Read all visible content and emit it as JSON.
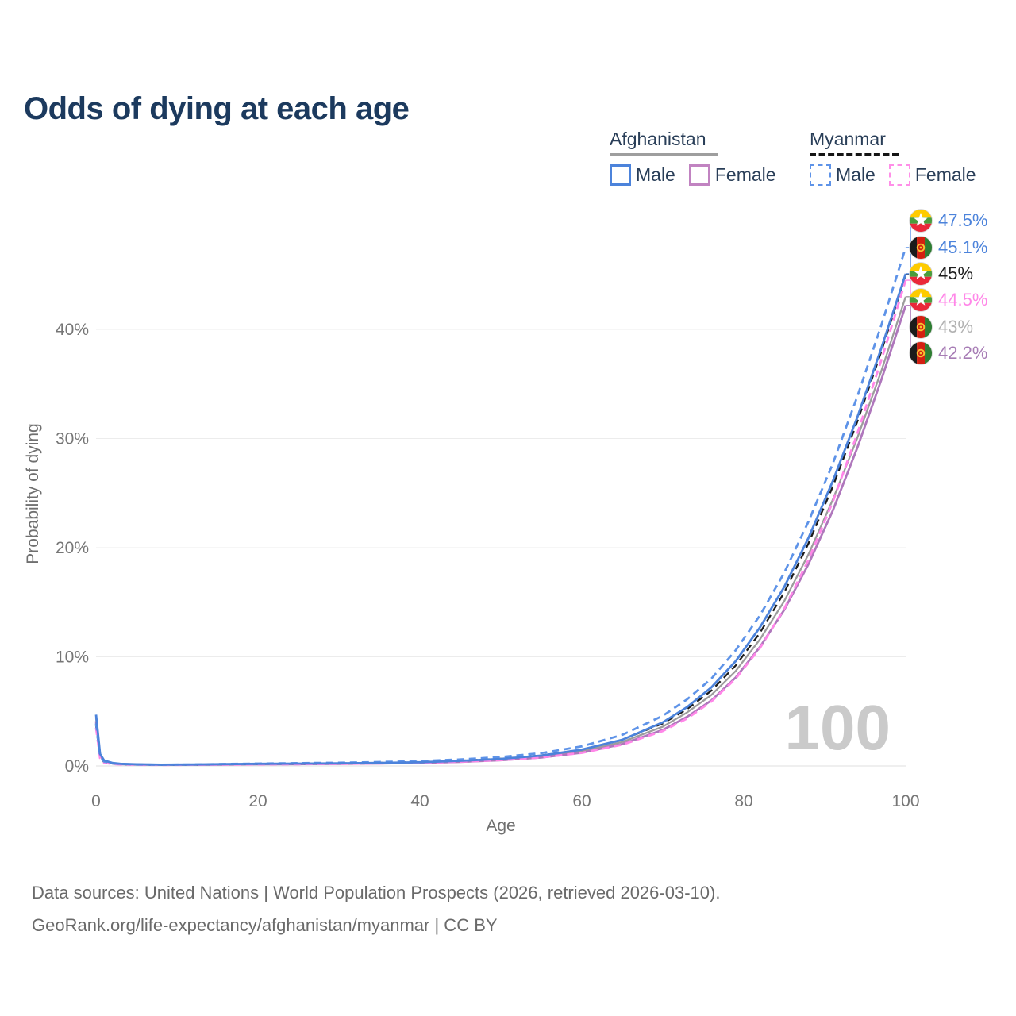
{
  "title": "Odds of dying at each age",
  "legend": {
    "groups": [
      {
        "label": "Afghanistan",
        "line_style": "solid",
        "underline_color": "#9E9E9E",
        "items": [
          {
            "label": "Male",
            "color": "#4C83DB",
            "dashed": false
          },
          {
            "label": "Female",
            "color": "#C183C1",
            "dashed": false
          }
        ]
      },
      {
        "label": "Myanmar",
        "line_style": "dashed",
        "underline_color": "#151515",
        "items": [
          {
            "label": "Male",
            "color": "#5E93E8",
            "dashed": true
          },
          {
            "label": "Female",
            "color": "#FF8FE8",
            "dashed": true
          }
        ]
      }
    ]
  },
  "chart_data": {
    "type": "line",
    "title": "Odds of dying at each age",
    "xlabel": "Age",
    "ylabel": "Probability of dying",
    "xlim": [
      0,
      100
    ],
    "ylim": [
      0,
      50
    ],
    "grid": true,
    "legend_position": "top-right",
    "x_ticks": [
      0,
      20,
      40,
      60,
      80,
      100
    ],
    "y_ticks": [
      {
        "value": 0,
        "label": "0%"
      },
      {
        "value": 10,
        "label": "10%"
      },
      {
        "value": 20,
        "label": "20%"
      },
      {
        "value": 30,
        "label": "30%"
      },
      {
        "value": 40,
        "label": "40%"
      }
    ],
    "x": [
      0,
      0.5,
      1,
      2,
      3,
      5,
      8,
      12,
      16,
      20,
      25,
      30,
      35,
      40,
      45,
      50,
      55,
      60,
      65,
      70,
      73,
      76,
      79,
      82,
      85,
      88,
      91,
      94,
      97,
      100
    ],
    "series": [
      {
        "name": "afghanistan-both",
        "country": "Afghanistan",
        "sex": "both",
        "color": "#9C9C9C",
        "dashed": false,
        "values": [
          4.4,
          1.0,
          0.45,
          0.25,
          0.19,
          0.14,
          0.11,
          0.12,
          0.15,
          0.18,
          0.2,
          0.22,
          0.26,
          0.31,
          0.43,
          0.59,
          0.86,
          1.35,
          2.2,
          3.6,
          4.9,
          6.5,
          8.7,
          11.6,
          15.1,
          19.4,
          24.4,
          30.0,
          36.2,
          43.0
        ],
        "end_value_pct": 43.0
      },
      {
        "name": "afghanistan-female",
        "country": "Afghanistan",
        "sex": "female",
        "color": "#AF77BC",
        "dashed": false,
        "values": [
          4.1,
          0.95,
          0.42,
          0.23,
          0.17,
          0.13,
          0.1,
          0.11,
          0.13,
          0.15,
          0.17,
          0.2,
          0.23,
          0.28,
          0.38,
          0.53,
          0.78,
          1.22,
          2.0,
          3.3,
          4.5,
          6.0,
          8.1,
          10.9,
          14.3,
          18.5,
          23.4,
          29.1,
          35.4,
          42.2
        ],
        "end_value_pct": 42.2
      },
      {
        "name": "myanmar-both",
        "country": "Myanmar",
        "sex": "both",
        "color": "#1B1B1B",
        "dashed": true,
        "values": [
          3.7,
          0.8,
          0.35,
          0.21,
          0.16,
          0.12,
          0.1,
          0.11,
          0.15,
          0.18,
          0.21,
          0.24,
          0.29,
          0.36,
          0.49,
          0.67,
          0.97,
          1.5,
          2.4,
          3.9,
          5.2,
          6.9,
          9.2,
          12.2,
          15.9,
          20.4,
          25.6,
          31.5,
          38.0,
          45.0
        ],
        "end_value_pct": 45.0
      },
      {
        "name": "myanmar-female",
        "country": "Myanmar",
        "sex": "female",
        "color": "#FF87E8",
        "dashed": true,
        "values": [
          3.5,
          0.7,
          0.3,
          0.18,
          0.14,
          0.1,
          0.09,
          0.1,
          0.12,
          0.14,
          0.16,
          0.19,
          0.23,
          0.29,
          0.39,
          0.54,
          0.78,
          1.2,
          1.95,
          3.2,
          4.35,
          5.9,
          8.0,
          10.8,
          14.4,
          18.9,
          24.2,
          30.4,
          37.2,
          44.5
        ],
        "end_value_pct": 44.5
      },
      {
        "name": "myanmar-male",
        "country": "Myanmar",
        "sex": "male",
        "color": "#5E93E8",
        "dashed": true,
        "values": [
          3.9,
          0.9,
          0.4,
          0.24,
          0.18,
          0.13,
          0.11,
          0.13,
          0.18,
          0.22,
          0.26,
          0.3,
          0.36,
          0.45,
          0.6,
          0.82,
          1.18,
          1.8,
          2.85,
          4.6,
          6.1,
          8.0,
          10.6,
          13.8,
          17.7,
          22.4,
          27.7,
          33.8,
          40.4,
          47.5
        ],
        "end_value_pct": 47.5
      },
      {
        "name": "afghanistan-male",
        "country": "Afghanistan",
        "sex": "male",
        "color": "#4C83DB",
        "dashed": false,
        "values": [
          4.7,
          1.1,
          0.5,
          0.28,
          0.2,
          0.15,
          0.12,
          0.13,
          0.17,
          0.2,
          0.22,
          0.24,
          0.28,
          0.34,
          0.47,
          0.65,
          0.95,
          1.5,
          2.4,
          4.0,
          5.4,
          7.2,
          9.6,
          12.7,
          16.4,
          20.9,
          26.1,
          31.9,
          38.3,
          45.1
        ],
        "end_value_pct": 45.1
      }
    ]
  },
  "age_indicator": "100",
  "end_labels": [
    {
      "country": "myanmar",
      "series": "myanmar-male",
      "value": "47.5%",
      "color": "#4C83DB"
    },
    {
      "country": "afghanistan",
      "series": "afghanistan-male",
      "value": "45.1%",
      "color": "#4C83DB"
    },
    {
      "country": "myanmar",
      "series": "myanmar-both",
      "value": "45%",
      "color": "#1F1F1F"
    },
    {
      "country": "myanmar",
      "series": "myanmar-female",
      "value": "44.5%",
      "color": "#FF87E8"
    },
    {
      "country": "afghanistan",
      "series": "afghanistan-both",
      "value": "43%",
      "color": "#B2B2B2"
    },
    {
      "country": "afghanistan",
      "series": "afghanistan-female",
      "value": "42.2%",
      "color": "#A77CB5"
    }
  ],
  "footer": {
    "line1": "Data sources: United Nations | World Population Prospects (2026, retrieved 2026-03-10).",
    "line2": "GeoRank.org/life-expectancy/afghanistan/myanmar | CC BY"
  }
}
